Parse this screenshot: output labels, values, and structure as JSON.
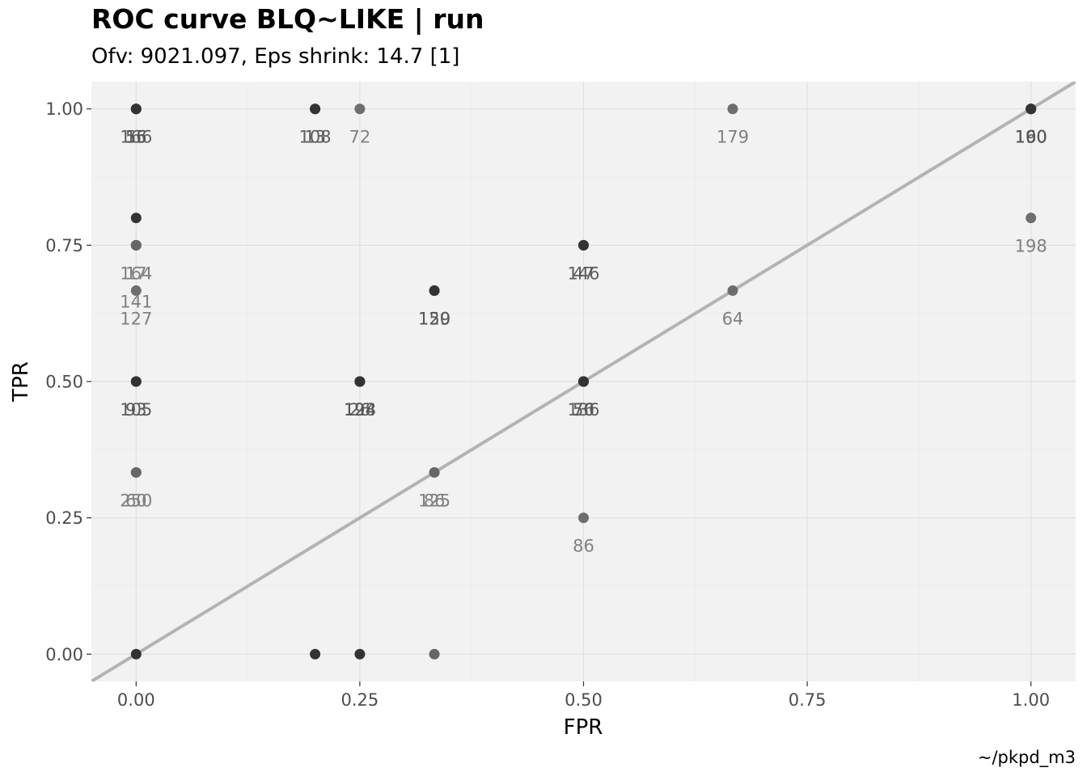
{
  "chart_data": {
    "type": "scatter",
    "title": "ROC curve BLQ~LIKE | run",
    "subtitle": "Ofv: 9021.097, Eps shrink: 14.7 [1]",
    "caption": "~/pkpd_m3",
    "xlabel": "FPR",
    "ylabel": "TPR",
    "xlim": [
      -0.05,
      1.05
    ],
    "ylim": [
      -0.05,
      1.05
    ],
    "x_ticks": [
      0,
      0.25,
      0.5,
      0.75,
      1
    ],
    "y_ticks": [
      0,
      0.25,
      0.5,
      0.75,
      1
    ],
    "x_tick_labels": [
      "0.00",
      "0.25",
      "0.50",
      "0.75",
      "1.00"
    ],
    "y_tick_labels": [
      "0.00",
      "0.25",
      "0.50",
      "0.75",
      "1.00"
    ],
    "reference_line": {
      "slope": 1,
      "intercept": 0,
      "color": "#b3b3b3"
    },
    "grid": true,
    "colors": {
      "panel": "#f2f2f2",
      "grid": "#e0e0e0",
      "point_dark": "#333333",
      "point_mid": "#666666",
      "label_dark": "#555555",
      "label_light": "#808080"
    },
    "points": [
      {
        "x": 0,
        "y": 1,
        "label": "166",
        "shade": "dark"
      },
      {
        "x": 0,
        "y": 1,
        "label": "15",
        "shade": "dark"
      },
      {
        "x": 0,
        "y": 1,
        "label": "56",
        "shade": "dark"
      },
      {
        "x": 0.2,
        "y": 1,
        "label": "108",
        "shade": "dark"
      },
      {
        "x": 0.2,
        "y": 1,
        "label": "13",
        "shade": "dark"
      },
      {
        "x": 0.25,
        "y": 1,
        "label": "72",
        "shade": "light"
      },
      {
        "x": 0.6667,
        "y": 1,
        "label": "179",
        "shade": "light"
      },
      {
        "x": 1,
        "y": 1,
        "label": "100",
        "shade": "dark"
      },
      {
        "x": 1,
        "y": 1,
        "label": "160",
        "shade": "dark"
      },
      {
        "x": 1,
        "y": 1,
        "label": "190",
        "shade": "dark"
      },
      {
        "x": 1,
        "y": 0.8,
        "label": "198",
        "shade": "light"
      },
      {
        "x": 0,
        "y": 0.8,
        "label": "",
        "shade": "dark"
      },
      {
        "x": 0,
        "y": 0.75,
        "label": "164",
        "shade": "light"
      },
      {
        "x": 0,
        "y": 0.75,
        "label": "17",
        "shade": "light"
      },
      {
        "x": 0,
        "y": 0.75,
        "label": "141",
        "shade": "light"
      },
      {
        "x": 0.5,
        "y": 0.75,
        "label": "146",
        "shade": "dark"
      },
      {
        "x": 0.5,
        "y": 0.75,
        "label": "47",
        "shade": "dark"
      },
      {
        "x": 0,
        "y": 0.6667,
        "label": "127",
        "shade": "light"
      },
      {
        "x": 0.3333,
        "y": 0.6667,
        "label": "150",
        "shade": "dark"
      },
      {
        "x": 0.3333,
        "y": 0.6667,
        "label": "129",
        "shade": "dark"
      },
      {
        "x": 0.6667,
        "y": 0.6667,
        "label": "64",
        "shade": "light"
      },
      {
        "x": 0,
        "y": 0.5,
        "label": "105",
        "shade": "dark"
      },
      {
        "x": 0,
        "y": 0.5,
        "label": "93",
        "shade": "dark"
      },
      {
        "x": 0.25,
        "y": 0.5,
        "label": "128",
        "shade": "dark"
      },
      {
        "x": 0.25,
        "y": 0.5,
        "label": "194",
        "shade": "dark"
      },
      {
        "x": 0.25,
        "y": 0.5,
        "label": "26",
        "shade": "dark"
      },
      {
        "x": 0.5,
        "y": 0.5,
        "label": "136",
        "shade": "dark"
      },
      {
        "x": 0.5,
        "y": 0.5,
        "label": "56",
        "shade": "dark"
      },
      {
        "x": 0.5,
        "y": 0.5,
        "label": "70",
        "shade": "dark"
      },
      {
        "x": 0,
        "y": 0.3333,
        "label": "250",
        "shade": "light"
      },
      {
        "x": 0,
        "y": 0.3333,
        "label": "60",
        "shade": "light"
      },
      {
        "x": 0.3333,
        "y": 0.3333,
        "label": "125",
        "shade": "light"
      },
      {
        "x": 0.3333,
        "y": 0.3333,
        "label": "86",
        "shade": "light"
      },
      {
        "x": 0.5,
        "y": 0.25,
        "label": "86",
        "shade": "light"
      },
      {
        "x": 0,
        "y": 0,
        "label": "",
        "shade": "dark"
      },
      {
        "x": 0.2,
        "y": 0,
        "label": "",
        "shade": "dark"
      },
      {
        "x": 0.25,
        "y": 0,
        "label": "",
        "shade": "dark"
      },
      {
        "x": 0.3333,
        "y": 0,
        "label": "",
        "shade": "mid"
      }
    ]
  }
}
